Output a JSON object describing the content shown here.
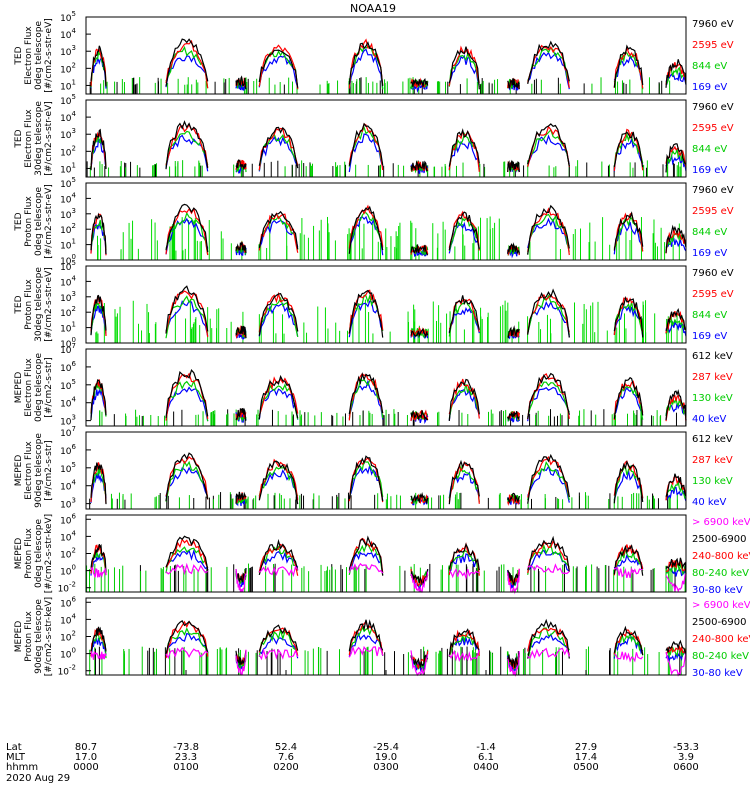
{
  "title": "NOAA19",
  "chart_data": {
    "type": "scatter",
    "title": "NOAA19",
    "x_range": [
      "0000",
      "0600"
    ],
    "panels": [
      {
        "ylabel": [
          "TED",
          "Electron Flux",
          "0deg telescope",
          "[#/cm2-s-str-eV]"
        ],
        "ytick_exponents": [
          "1",
          "2",
          "3",
          "4",
          "5"
        ],
        "ylim_log10": [
          0.5,
          5.0
        ],
        "legend": [
          {
            "label": "7960 eV",
            "color": "#000000"
          },
          {
            "label": "2595 eV",
            "color": "#ff0000"
          },
          {
            "label": "844 eV",
            "color": "#00cc00"
          },
          {
            "label": "169 eV",
            "color": "#0000ff"
          }
        ]
      },
      {
        "ylabel": [
          "TED",
          "Electron Flux",
          "30deg telescope",
          "[#/cm2-s-str-eV]"
        ],
        "ytick_exponents": [
          "1",
          "2",
          "3",
          "4",
          "5"
        ],
        "ylim_log10": [
          0.5,
          5.0
        ],
        "legend": [
          {
            "label": "7960 eV",
            "color": "#000000"
          },
          {
            "label": "2595 eV",
            "color": "#ff0000"
          },
          {
            "label": "844 eV",
            "color": "#00cc00"
          },
          {
            "label": "169 eV",
            "color": "#0000ff"
          }
        ]
      },
      {
        "ylabel": [
          "TED",
          "Proton Flux",
          "0deg telescope",
          "[#/cm2-s-str-eV]"
        ],
        "ytick_exponents": [
          "0",
          "1",
          "2",
          "3",
          "4",
          "5"
        ],
        "ylim_log10": [
          0,
          5
        ],
        "legend": [
          {
            "label": "7960 eV",
            "color": "#000000"
          },
          {
            "label": "2595 eV",
            "color": "#ff0000"
          },
          {
            "label": "844 eV",
            "color": "#00cc00"
          },
          {
            "label": "169 eV",
            "color": "#0000ff"
          }
        ]
      },
      {
        "ylabel": [
          "TED",
          "Proton Flux",
          "30deg telescope",
          "[#/cm2-s-str-eV]"
        ],
        "ytick_exponents": [
          "0",
          "1",
          "2",
          "3",
          "4",
          "5"
        ],
        "ylim_log10": [
          0,
          5
        ],
        "legend": [
          {
            "label": "7960 eV",
            "color": "#000000"
          },
          {
            "label": "2595 eV",
            "color": "#ff0000"
          },
          {
            "label": "844 eV",
            "color": "#00cc00"
          },
          {
            "label": "169 eV",
            "color": "#0000ff"
          }
        ]
      },
      {
        "ylabel": [
          "MEPED",
          "Electron Flux",
          "0deg telescope",
          "[#/cm2-s-str]"
        ],
        "ytick_exponents": [
          "3",
          "4",
          "5",
          "6",
          "7"
        ],
        "ylim_log10": [
          2.7,
          7
        ],
        "legend": [
          {
            "label": "612 keV",
            "color": "#000000"
          },
          {
            "label": "287 keV",
            "color": "#ff0000"
          },
          {
            "label": "130 keV",
            "color": "#00cc00"
          },
          {
            "label": "40 keV",
            "color": "#0000ff"
          }
        ]
      },
      {
        "ylabel": [
          "MEPED",
          "Electron Flux",
          "90deg telescope",
          "[#/cm2-s-str]"
        ],
        "ytick_exponents": [
          "3",
          "4",
          "5",
          "6",
          "7"
        ],
        "ylim_log10": [
          2.7,
          7
        ],
        "legend": [
          {
            "label": "612 keV",
            "color": "#000000"
          },
          {
            "label": "287 keV",
            "color": "#ff0000"
          },
          {
            "label": "130 keV",
            "color": "#00cc00"
          },
          {
            "label": "40 keV",
            "color": "#0000ff"
          }
        ]
      },
      {
        "ylabel": [
          "MEPED",
          "Proton Flux",
          "0deg telescope",
          "[#/cm2-s-str-keV]"
        ],
        "ytick_exponents": [
          "-2",
          "0",
          "2",
          "4",
          "6"
        ],
        "ylim_log10": [
          -2.5,
          6.5
        ],
        "legend": [
          {
            "label": "> 6900 keV",
            "color": "#ff00ff"
          },
          {
            "label": "2500-6900",
            "color": "#000000"
          },
          {
            "label": "240-800 keV",
            "color": "#ff0000"
          },
          {
            "label": "80-240 keV",
            "color": "#00cc00"
          },
          {
            "label": "30-80 keV",
            "color": "#0000ff"
          }
        ]
      },
      {
        "ylabel": [
          "MEPED",
          "Proton Flux",
          "90deg telescope",
          "[#/cm2-s-str-keV]"
        ],
        "ytick_exponents": [
          "-2",
          "0",
          "2",
          "4",
          "6"
        ],
        "ylim_log10": [
          -2.5,
          6.5
        ],
        "legend": [
          {
            "label": "> 6900 keV",
            "color": "#ff00ff"
          },
          {
            "label": "2500-6900",
            "color": "#000000"
          },
          {
            "label": "240-800 keV",
            "color": "#ff0000"
          },
          {
            "label": "80-240 keV",
            "color": "#00cc00"
          },
          {
            "label": "30-80 keV",
            "color": "#0000ff"
          }
        ]
      }
    ],
    "orbit_passes": [
      {
        "start": "0003",
        "end": "0012",
        "peak_log10": [
          4.2,
          4.6,
          5.0,
          5.2
        ]
      },
      {
        "start": "0048",
        "end": "0113",
        "peak_log10": [
          4.4,
          4.8,
          5.3,
          5.6
        ]
      },
      {
        "start": "0130",
        "end": "0136",
        "peak_log10": [
          3.0,
          3.3,
          3.6,
          3.8
        ]
      },
      {
        "start": "0144",
        "end": "0207",
        "peak_log10": [
          4.3,
          4.7,
          5.1,
          5.3
        ]
      },
      {
        "start": "0238",
        "end": "0258",
        "peak_log10": [
          4.5,
          4.9,
          5.3,
          5.5
        ]
      },
      {
        "start": "0315",
        "end": "0325",
        "peak_log10": [
          3.0,
          3.3,
          3.5,
          3.7
        ]
      },
      {
        "start": "0338",
        "end": "0356",
        "peak_log10": [
          4.2,
          4.6,
          5.0,
          5.2
        ]
      },
      {
        "start": "0413",
        "end": "0420",
        "peak_log10": [
          3.0,
          3.3,
          3.5,
          3.7
        ]
      },
      {
        "start": "0425",
        "end": "0450",
        "peak_log10": [
          4.4,
          4.8,
          5.2,
          5.5
        ]
      },
      {
        "start": "0517",
        "end": "0534",
        "peak_log10": [
          4.2,
          4.6,
          5.0,
          5.2
        ]
      },
      {
        "start": "0548",
        "end": "0600",
        "peak_log10": [
          3.5,
          3.9,
          4.3,
          4.6
        ]
      }
    ],
    "x_axis": {
      "row_labels": [
        "Lat",
        "MLT",
        "hhmm"
      ],
      "date": "2020 Aug 29",
      "ticks": [
        {
          "time": "0000",
          "lat": "80.7",
          "mlt": "17.0",
          "hhmm": "0000"
        },
        {
          "time": "0100",
          "lat": "-73.8",
          "mlt": "23.3",
          "hhmm": "0100"
        },
        {
          "time": "0200",
          "lat": "52.4",
          "mlt": "7.6",
          "hhmm": "0200"
        },
        {
          "time": "0300",
          "lat": "-25.4",
          "mlt": "19.0",
          "hhmm": "0300"
        },
        {
          "time": "0400",
          "lat": "-1.4",
          "mlt": "6.1",
          "hhmm": "0400"
        },
        {
          "time": "0500",
          "lat": "27.9",
          "mlt": "17.4",
          "hhmm": "0500"
        },
        {
          "time": "0600",
          "lat": "-53.3",
          "mlt": "3.9",
          "hhmm": "0600"
        }
      ]
    }
  }
}
